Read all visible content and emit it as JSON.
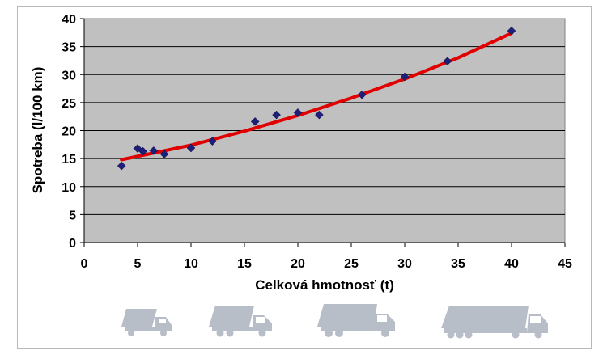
{
  "chart_data": {
    "type": "scatter",
    "title": "",
    "xlabel": "Celková hmotnosť (t)",
    "ylabel": "Spotreba (l/100 km)",
    "xlim": [
      0,
      45
    ],
    "ylim": [
      0,
      40
    ],
    "x_ticks": [
      0,
      5,
      10,
      15,
      20,
      25,
      30,
      35,
      40,
      45
    ],
    "y_ticks": [
      0,
      5,
      10,
      15,
      20,
      25,
      30,
      35,
      40
    ],
    "grid": "horizontal",
    "plot_background": "#c0c0c0",
    "series": [
      {
        "marker": "diamond",
        "color": "#1f1f7a",
        "points": [
          {
            "x": 3.5,
            "y": 13.7
          },
          {
            "x": 5.0,
            "y": 16.8
          },
          {
            "x": 5.5,
            "y": 16.3
          },
          {
            "x": 6.5,
            "y": 16.4
          },
          {
            "x": 7.5,
            "y": 15.8
          },
          {
            "x": 10.0,
            "y": 16.9
          },
          {
            "x": 12.0,
            "y": 18.1
          },
          {
            "x": 16.0,
            "y": 21.6
          },
          {
            "x": 18.0,
            "y": 22.8
          },
          {
            "x": 20.0,
            "y": 23.2
          },
          {
            "x": 22.0,
            "y": 22.8
          },
          {
            "x": 26.0,
            "y": 26.4
          },
          {
            "x": 30.0,
            "y": 29.6
          },
          {
            "x": 34.0,
            "y": 32.4
          },
          {
            "x": 40.0,
            "y": 37.8
          }
        ]
      }
    ],
    "trendline": {
      "color": "#e00000",
      "points": [
        {
          "x": 3.5,
          "y": 14.8
        },
        {
          "x": 10,
          "y": 17.4
        },
        {
          "x": 15,
          "y": 19.9
        },
        {
          "x": 20,
          "y": 22.7
        },
        {
          "x": 25,
          "y": 25.8
        },
        {
          "x": 30,
          "y": 29.2
        },
        {
          "x": 35,
          "y": 33.0
        },
        {
          "x": 40,
          "y": 37.4
        }
      ]
    }
  },
  "trucks": {
    "color": "#b8bec8",
    "icons": [
      "small-truck-icon",
      "medium-truck-icon",
      "large-truck-icon",
      "semi-trailer-truck-icon"
    ]
  }
}
